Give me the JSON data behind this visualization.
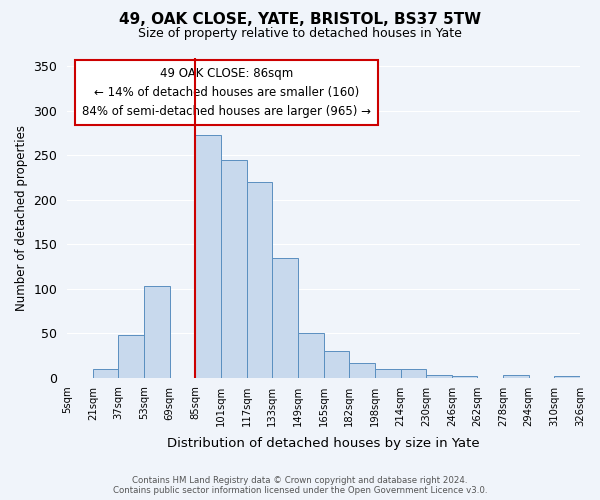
{
  "title": "49, OAK CLOSE, YATE, BRISTOL, BS37 5TW",
  "subtitle": "Size of property relative to detached houses in Yate",
  "xlabel": "Distribution of detached houses by size in Yate",
  "ylabel": "Number of detached properties",
  "footer_line1": "Contains HM Land Registry data © Crown copyright and database right 2024.",
  "footer_line2": "Contains public sector information licensed under the Open Government Licence v3.0.",
  "bin_labels": [
    "5sqm",
    "21sqm",
    "37sqm",
    "53sqm",
    "69sqm",
    "85sqm",
    "101sqm",
    "117sqm",
    "133sqm",
    "149sqm",
    "165sqm",
    "182sqm",
    "198sqm",
    "214sqm",
    "230sqm",
    "246sqm",
    "262sqm",
    "278sqm",
    "294sqm",
    "310sqm",
    "326sqm"
  ],
  "bar_heights": [
    0,
    10,
    48,
    103,
    0,
    273,
    245,
    220,
    135,
    50,
    30,
    17,
    10,
    10,
    3,
    2,
    0,
    3,
    0,
    2
  ],
  "bar_color": "#c8d9ed",
  "bar_edge_color": "#5a8fc0",
  "vline_x": 5,
  "vline_color": "#cc0000",
  "annotation_line1": "49 OAK CLOSE: 86sqm",
  "annotation_line2": "← 14% of detached houses are smaller (160)",
  "annotation_line3": "84% of semi-detached houses are larger (965) →",
  "annotation_box_color": "#ffffff",
  "annotation_box_edge": "#cc0000",
  "ylim": [
    0,
    360
  ],
  "yticks": [
    0,
    50,
    100,
    150,
    200,
    250,
    300,
    350
  ],
  "background_color": "#f0f4fa"
}
